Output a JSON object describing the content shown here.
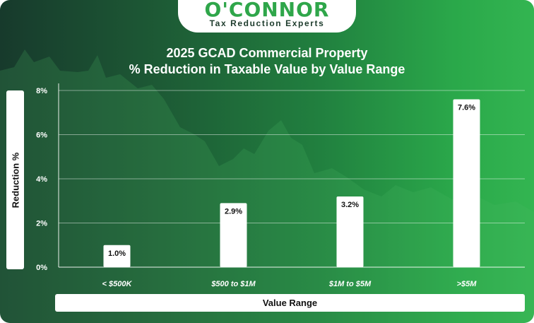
{
  "brand": {
    "name": "O'CONNOR",
    "tagline": "Tax Reduction Experts"
  },
  "colors": {
    "background_dark": "#173a2c",
    "background_light": "#33b551",
    "brand_green": "#2fa64a",
    "bar": "#ffffff"
  },
  "chart_data": {
    "type": "bar",
    "title": "2025 GCAD Commercial Property",
    "subtitle": "% Reduction in Taxable Value by Value Range",
    "xlabel": "Value Range",
    "ylabel": "Reduction %",
    "categories": [
      "< $500K",
      "$500 to $1M",
      "$1M to $5M",
      ">$5M"
    ],
    "values": [
      1.0,
      2.9,
      3.2,
      7.6
    ],
    "data_labels": [
      "1.0%",
      "2.9%",
      "3.2%",
      "7.6%"
    ],
    "yticks": [
      0,
      2,
      4,
      6,
      8
    ],
    "ytick_labels": [
      "0%",
      "2%",
      "4%",
      "6%",
      "8%"
    ],
    "ylim": [
      0,
      8
    ],
    "grid": true,
    "legend": "none"
  }
}
